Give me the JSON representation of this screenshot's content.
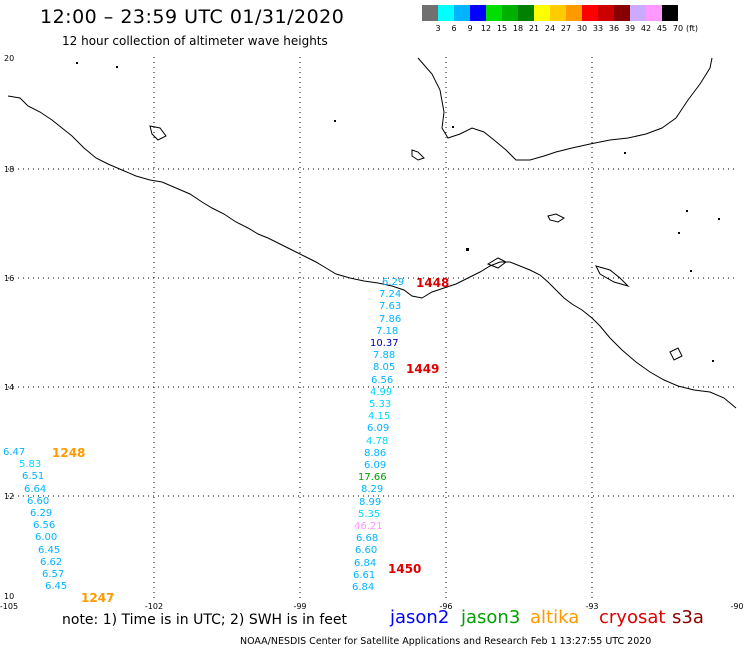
{
  "header": {
    "title": "12:00 – 23:59 UTC 01/31/2020",
    "subtitle": "12 hour collection of altimeter wave heights"
  },
  "color_scale": {
    "unit": "(ft)",
    "labels": [
      "3",
      "6",
      "9",
      "12",
      "15",
      "18",
      "21",
      "24",
      "27",
      "30",
      "33",
      "36",
      "39",
      "42",
      "45",
      "70"
    ],
    "colors": [
      "#707070",
      "#00ffff",
      "#00b4ff",
      "#0000ff",
      "#00dd00",
      "#00b000",
      "#008000",
      "#ffff00",
      "#ffcc00",
      "#ff9900",
      "#ff0000",
      "#cc0000",
      "#880000",
      "#ccaaff",
      "#ff99ff",
      "#000000"
    ]
  },
  "axes": {
    "lat_labels": [
      "20",
      "18",
      "16",
      "14",
      "12",
      "10"
    ],
    "lon_labels": [
      "-105",
      "-102",
      "-99",
      "-96",
      "-93",
      "-90"
    ]
  },
  "tracks": {
    "track_center": [
      {
        "v": "6.29",
        "c": "#00b4ff"
      },
      {
        "v": "7.24",
        "c": "#00b4ff"
      },
      {
        "v": "7.63",
        "c": "#00b4ff"
      },
      {
        "v": "7.86",
        "c": "#00b4ff"
      },
      {
        "v": "7.18",
        "c": "#00b4ff"
      },
      {
        "v": "10.37",
        "c": "#0000aa"
      },
      {
        "v": "7.88",
        "c": "#00b4ff"
      },
      {
        "v": "8.05",
        "c": "#00b4ff"
      },
      {
        "v": "6.56",
        "c": "#00b4ff"
      },
      {
        "v": "4.99",
        "c": "#00d8ff"
      },
      {
        "v": "5.33",
        "c": "#00d8ff"
      },
      {
        "v": "4.15",
        "c": "#00d8ff"
      },
      {
        "v": "6.09",
        "c": "#00b4ff"
      },
      {
        "v": "4.78",
        "c": "#00d8ff"
      },
      {
        "v": "8.86",
        "c": "#00b4ff"
      },
      {
        "v": "6.09",
        "c": "#00b4ff"
      },
      {
        "v": "17.66",
        "c": "#00a000"
      },
      {
        "v": "8.29",
        "c": "#00b4ff"
      },
      {
        "v": "8.99",
        "c": "#00b4ff"
      },
      {
        "v": "5.35",
        "c": "#00d8ff"
      },
      {
        "v": "46.21",
        "c": "#ff99ff"
      },
      {
        "v": "6.68",
        "c": "#00b4ff"
      },
      {
        "v": "6.60",
        "c": "#00b4ff"
      },
      {
        "v": "6.84",
        "c": "#00b4ff"
      },
      {
        "v": "6.61",
        "c": "#00b4ff"
      },
      {
        "v": "6.84",
        "c": "#00b4ff"
      }
    ],
    "track_left": [
      {
        "v": "6.47",
        "c": "#00b4ff"
      },
      {
        "v": "5.83",
        "c": "#00d8ff"
      },
      {
        "v": "6.51",
        "c": "#00b4ff"
      },
      {
        "v": "6.64",
        "c": "#00b4ff"
      },
      {
        "v": "6.60",
        "c": "#00b4ff"
      },
      {
        "v": "6.29",
        "c": "#00b4ff"
      },
      {
        "v": "6.56",
        "c": "#00b4ff"
      },
      {
        "v": "6.00",
        "c": "#00b4ff"
      },
      {
        "v": "6.45",
        "c": "#00b4ff"
      },
      {
        "v": "6.62",
        "c": "#00b4ff"
      },
      {
        "v": "6.57",
        "c": "#00b4ff"
      },
      {
        "v": "6.45",
        "c": "#00b4ff"
      }
    ]
  },
  "times": [
    {
      "t": "1448",
      "c": "#dd0000"
    },
    {
      "t": "1449",
      "c": "#dd0000"
    },
    {
      "t": "1450",
      "c": "#dd0000"
    },
    {
      "t": "1248",
      "c": "#ff9900"
    },
    {
      "t": "1247",
      "c": "#ff9900"
    }
  ],
  "footer": {
    "note": "note: 1) Time is in UTC; 2) SWH is in feet",
    "satellites": [
      {
        "name": "jason2",
        "color": "#0000ff"
      },
      {
        "name": "jason3",
        "color": "#00a000"
      },
      {
        "name": "altika",
        "color": "#ff9900"
      },
      {
        "name": "cryosat",
        "color": "#dd0000"
      },
      {
        "name": "s3a",
        "color": "#880000"
      }
    ],
    "credit": "NOAA/NESDIS Center for Satellite Applications and Research   Feb  1 13:27:55 UTC 2020"
  }
}
